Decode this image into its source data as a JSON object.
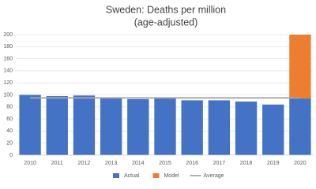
{
  "chart_data": {
    "type": "bar",
    "stacked": true,
    "title": "Sweden: Deaths per million",
    "subtitle": "(age-adjusted)",
    "categories": [
      "2010",
      "2011",
      "2012",
      "2013",
      "2014",
      "2015",
      "2016",
      "2017",
      "2018",
      "2019",
      "2020"
    ],
    "series": [
      {
        "name": "Actual",
        "color": "#4472c4",
        "values": [
          100,
          98,
          99,
          96,
          93,
          95,
          91,
          91,
          89,
          84,
          94
        ]
      },
      {
        "name": "Model",
        "color": "#ed7d31",
        "values": [
          null,
          null,
          null,
          null,
          null,
          null,
          null,
          null,
          null,
          null,
          106
        ]
      },
      {
        "name": "Average",
        "color": "#a5a5a5",
        "type": "line",
        "values": [
          95,
          95,
          95,
          95,
          95,
          95,
          95,
          95,
          95,
          95,
          95
        ]
      }
    ],
    "ylim": [
      0,
      200
    ],
    "yticks": [
      0,
      20,
      40,
      60,
      80,
      100,
      120,
      140,
      160,
      180,
      200
    ],
    "grid": true,
    "legend": "bottom"
  }
}
